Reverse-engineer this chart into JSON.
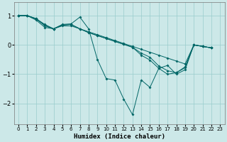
{
  "xlabel": "Humidex (Indice chaleur)",
  "bg_color": "#cce8e8",
  "grid_color": "#99cccc",
  "line_color": "#006666",
  "xlim": [
    -0.5,
    23.5
  ],
  "ylim": [
    -2.7,
    1.45
  ],
  "yticks": [
    -2,
    -1,
    0,
    1
  ],
  "xticks": [
    0,
    1,
    2,
    3,
    4,
    5,
    6,
    7,
    8,
    9,
    10,
    11,
    12,
    13,
    14,
    15,
    16,
    17,
    18,
    19,
    20,
    21,
    22,
    23
  ],
  "lines": [
    {
      "x": [
        0,
        1,
        2,
        3,
        4,
        5,
        6,
        7,
        8,
        9,
        10,
        11,
        12,
        13,
        14,
        15,
        16,
        17,
        18,
        19,
        20,
        21,
        22
      ],
      "y": [
        1.0,
        1.0,
        0.85,
        0.6,
        0.55,
        0.65,
        0.65,
        0.55,
        0.45,
        0.35,
        0.25,
        0.15,
        0.05,
        -0.05,
        -0.15,
        -0.25,
        -0.35,
        -0.45,
        -0.55,
        -0.65,
        0.0,
        -0.05,
        -0.1
      ]
    },
    {
      "x": [
        0,
        1,
        2,
        3,
        4,
        5,
        6,
        7,
        8,
        9,
        10,
        11,
        12,
        13,
        14,
        15,
        16,
        17,
        18,
        19,
        20,
        21,
        22
      ],
      "y": [
        1.0,
        1.0,
        0.9,
        0.65,
        0.55,
        0.68,
        0.7,
        0.55,
        0.42,
        0.32,
        0.22,
        0.12,
        0.02,
        -0.08,
        -0.28,
        -0.42,
        -0.72,
        -0.88,
        -0.95,
        -0.78,
        0.0,
        -0.05,
        -0.1
      ]
    },
    {
      "x": [
        0,
        1,
        2,
        3,
        4,
        5,
        6,
        7,
        8,
        9,
        10,
        11,
        12,
        13,
        14,
        15,
        16,
        17,
        18,
        19,
        20,
        21,
        22
      ],
      "y": [
        1.0,
        1.0,
        0.88,
        0.68,
        0.55,
        0.68,
        0.7,
        0.55,
        0.42,
        0.32,
        0.22,
        0.12,
        0.02,
        -0.08,
        -0.35,
        -0.52,
        -0.8,
        -1.0,
        -0.95,
        -0.75,
        0.0,
        -0.05,
        -0.1
      ]
    },
    {
      "x": [
        0,
        1,
        2,
        3,
        4,
        5,
        6,
        7,
        8,
        9,
        10,
        11,
        12,
        13,
        14,
        15,
        16,
        17,
        18,
        19,
        20,
        21,
        22
      ],
      "y": [
        1.0,
        1.0,
        0.9,
        0.7,
        0.55,
        0.7,
        0.72,
        0.95,
        0.55,
        -0.5,
        -1.15,
        -1.2,
        -1.85,
        -2.38,
        -1.2,
        -1.45,
        -0.8,
        -0.7,
        -1.0,
        -0.85,
        0.0,
        -0.05,
        -0.1
      ]
    }
  ]
}
